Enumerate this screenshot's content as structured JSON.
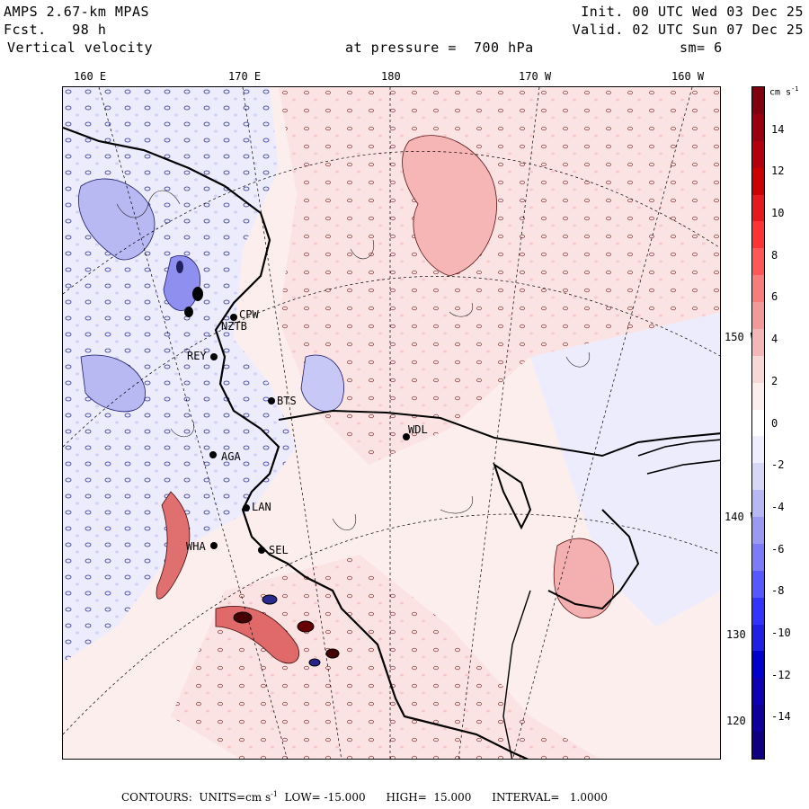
{
  "header": {
    "model": "AMPS 2.67-km MPAS",
    "forecast": "Fcst.   98 h",
    "field": "Vertical velocity",
    "init": "Init. 00 UTC Wed 03 Dec 25",
    "valid": "Valid. 02 UTC Sun 07 Dec 25",
    "pressure": "at pressure =  700 hPa",
    "smoothing": "sm= 6"
  },
  "longitudes": [
    "160 E",
    "170 E",
    "180",
    "170 W",
    "160 W"
  ],
  "latitudes": [
    "150 W",
    "140 W",
    "130 W",
    "120 W"
  ],
  "stations": [
    {
      "code": "CPW"
    },
    {
      "code": "NZTB"
    },
    {
      "code": "REY"
    },
    {
      "code": "BTS"
    },
    {
      "code": "WDL"
    },
    {
      "code": "AGA"
    },
    {
      "code": "LAN"
    },
    {
      "code": "WHA"
    },
    {
      "code": "SEL"
    }
  ],
  "colorbar": {
    "units": "cm s",
    "units_exp": "-1",
    "ticks": [
      "14",
      "12",
      "10",
      "8",
      "6",
      "4",
      "2",
      "0",
      "-2",
      "-4",
      "-6",
      "-8",
      "-10",
      "-12",
      "-14"
    ],
    "colors": [
      "#80000f",
      "#99000f",
      "#b3000d",
      "#cc0000",
      "#e6191f",
      "#ff3333",
      "#ff5757",
      "#f77c7c",
      "#f29a9a",
      "#f2b8b8",
      "#f8d7d7",
      "#fdeeee",
      "#ffffff",
      "#eeeeff",
      "#d7d7f8",
      "#b8b8f2",
      "#9a9af2",
      "#7c7cf7",
      "#5757ff",
      "#3333ff",
      "#1f1fe6",
      "#0000cc",
      "#0d00b3",
      "#0f0099",
      "#0f0080"
    ]
  },
  "footer": {
    "text_a": "CONTOURS:  UNITS=cm s",
    "text_exp": "-1",
    "text_b": "  LOW= -15.000      HIGH=  15.000      INTERVAL=   1.0000"
  }
}
